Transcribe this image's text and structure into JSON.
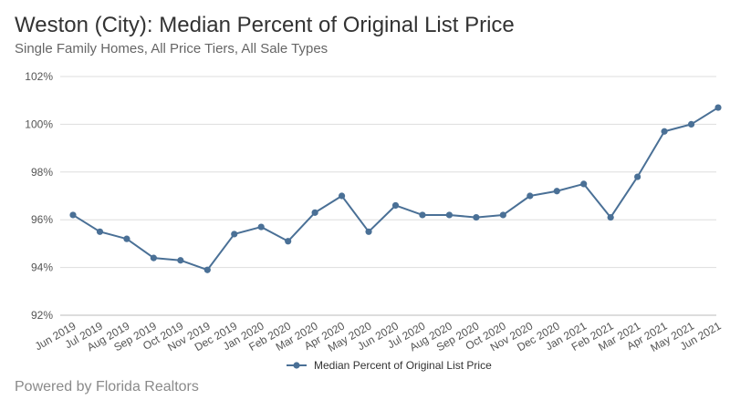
{
  "header": {
    "title": "Weston (City): Median Percent of Original List Price",
    "subtitle": "Single Family Homes, All Price Tiers, All Sale Types"
  },
  "footer": {
    "text": "Powered by Florida Realtors"
  },
  "colors": {
    "series": "#4a7096",
    "grid": "#dddddd",
    "axis": "#bbbbbb"
  },
  "chart_data": {
    "type": "line",
    "title": "Weston (City): Median Percent of Original List Price",
    "subtitle": "Single Family Homes, All Price Tiers, All Sale Types",
    "categories": [
      "Jun 2019",
      "Jul 2019",
      "Aug 2019",
      "Sep 2019",
      "Oct 2019",
      "Nov 2019",
      "Dec 2019",
      "Jan 2020",
      "Feb 2020",
      "Mar 2020",
      "Apr 2020",
      "May 2020",
      "Jun 2020",
      "Jul 2020",
      "Aug 2020",
      "Sep 2020",
      "Oct 2020",
      "Nov 2020",
      "Dec 2020",
      "Jan 2021",
      "Feb 2021",
      "Mar 2021",
      "Apr 2021",
      "May 2021",
      "Jun 2021"
    ],
    "series": [
      {
        "name": "Median Percent of Original List Price",
        "values": [
          96.2,
          95.5,
          95.2,
          94.4,
          94.3,
          93.9,
          95.4,
          95.7,
          95.1,
          96.3,
          97.0,
          95.5,
          96.6,
          96.2,
          96.2,
          96.1,
          96.2,
          97.0,
          97.2,
          97.5,
          96.1,
          97.8,
          99.7,
          100.0,
          100.7
        ]
      }
    ],
    "ylim": [
      92,
      102
    ],
    "yticks": [
      92,
      94,
      96,
      98,
      100,
      102
    ],
    "ytick_labels": [
      "92%",
      "94%",
      "96%",
      "98%",
      "100%",
      "102%"
    ],
    "xlabel": "",
    "ylabel": "",
    "grid": true,
    "legend": "bottom-center"
  }
}
